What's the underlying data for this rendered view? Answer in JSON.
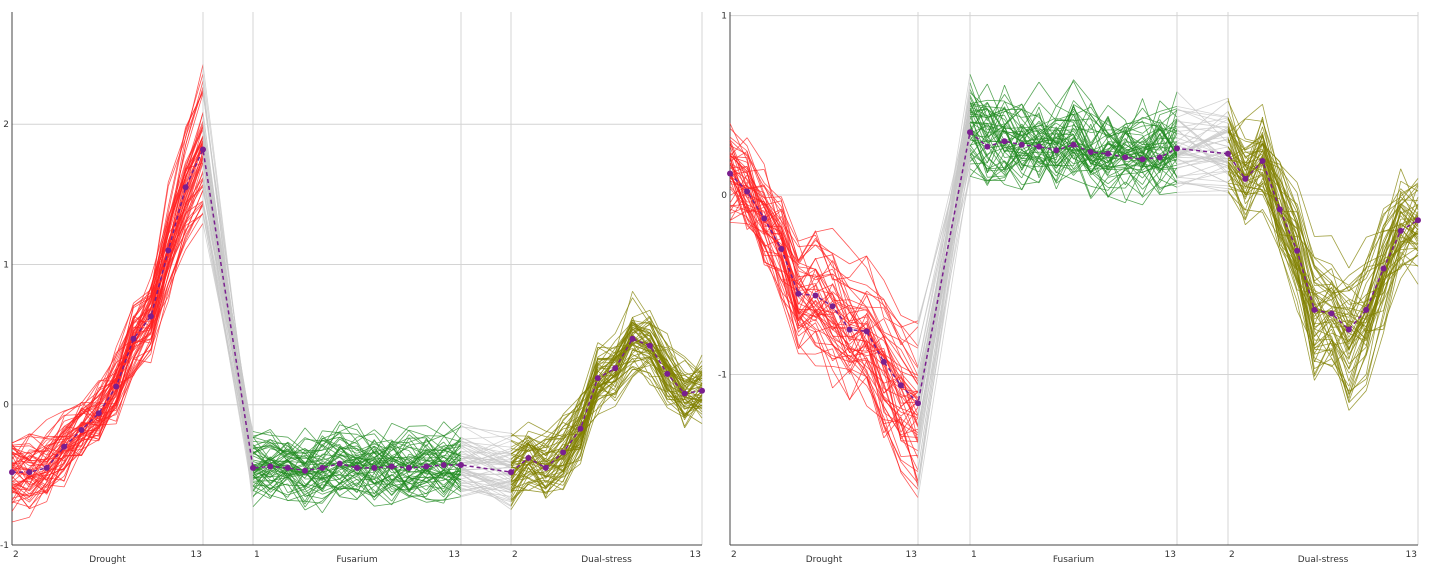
{
  "chart_data": [
    {
      "type": "line",
      "panel": "left",
      "ylim": [
        -1,
        2.8
      ],
      "yticks": [
        -1,
        0,
        1,
        2
      ],
      "groups": [
        {
          "name": "Drought",
          "x_start_label": "2",
          "x_end_label": "13",
          "color": "#ff2020"
        },
        {
          "name": "Fusarium",
          "x_start_label": "1",
          "x_end_label": "13",
          "color": "#228b22"
        },
        {
          "name": "Dual-stress",
          "x_start_label": "2",
          "x_end_label": "13",
          "color": "#808000"
        }
      ],
      "connector_color": "#c8c8c8",
      "mean_color": "#7a1f8f",
      "mean_profile": [
        -0.48,
        -0.48,
        -0.45,
        -0.3,
        -0.18,
        -0.06,
        0.13,
        0.47,
        0.63,
        1.1,
        1.55,
        1.82,
        -0.45,
        -0.44,
        -0.45,
        -0.47,
        -0.45,
        -0.42,
        -0.45,
        -0.45,
        -0.44,
        -0.45,
        -0.44,
        -0.43,
        -0.43,
        -0.48,
        -0.38,
        -0.45,
        -0.34,
        -0.17,
        0.19,
        0.26,
        0.47,
        0.42,
        0.22,
        0.08,
        0.1
      ],
      "n_profiles": 60,
      "spread": 0.18
    },
    {
      "type": "line",
      "panel": "right",
      "ylim": [
        -1.95,
        1.02
      ],
      "yticks": [
        -1,
        0,
        1
      ],
      "groups": [
        {
          "name": "Drought",
          "x_start_label": "2",
          "x_end_label": "13",
          "color": "#ff2020"
        },
        {
          "name": "Fusarium",
          "x_start_label": "1",
          "x_end_label": "13",
          "color": "#228b22"
        },
        {
          "name": "Dual-stress",
          "x_start_label": "2",
          "x_end_label": "13",
          "color": "#808000"
        }
      ],
      "connector_color": "#c8c8c8",
      "mean_color": "#7a1f8f",
      "mean_profile": [
        0.12,
        0.02,
        -0.13,
        -0.3,
        -0.55,
        -0.56,
        -0.62,
        -0.75,
        -0.76,
        -0.93,
        -1.06,
        -1.16,
        0.35,
        0.27,
        0.3,
        0.28,
        0.27,
        0.25,
        0.28,
        0.24,
        0.23,
        0.21,
        0.2,
        0.21,
        0.26,
        0.23,
        0.09,
        0.19,
        -0.08,
        -0.31,
        -0.64,
        -0.66,
        -0.75,
        -0.64,
        -0.41,
        -0.2,
        -0.14
      ],
      "n_profiles": 55,
      "spread": 0.22
    }
  ]
}
